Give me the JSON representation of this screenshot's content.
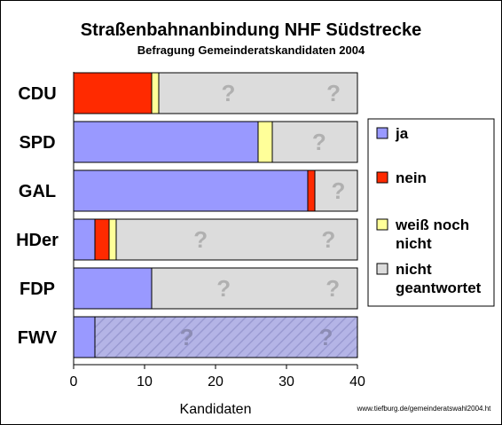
{
  "title": "Straßenbahnanbindung NHF Südstrecke",
  "subtitle": "Befragung Gemeinderatskandidaten 2004",
  "source": "www.tiefburg.de/gemeinderatswahl2004.ht",
  "unanswered_mark": "?",
  "colors": {
    "ja": "#9999ff",
    "nein": "#ff2a00",
    "weiss_noch_nicht": "#ffff99",
    "nicht_geantwortet": "#dcdcdc"
  },
  "chart_data": {
    "type": "bar",
    "orientation": "horizontal",
    "stacked": true,
    "categories": [
      "CDU",
      "SPD",
      "GAL",
      "HDer",
      "FDP",
      "FWV"
    ],
    "series": [
      {
        "name": "ja",
        "values": [
          0,
          26,
          33,
          3,
          11,
          3
        ]
      },
      {
        "name": "nein",
        "values": [
          11,
          0,
          1,
          2,
          0,
          0
        ]
      },
      {
        "name": "weiß noch nicht",
        "values": [
          1,
          2,
          0,
          1,
          0,
          0
        ]
      },
      {
        "name": "nicht geantwortet",
        "values": [
          28,
          12,
          6,
          34,
          29,
          37
        ]
      }
    ],
    "xlabel": "Kandidaten",
    "ylabel": "",
    "xlim": [
      0,
      40
    ],
    "xticks": [
      0,
      10,
      20,
      30,
      40
    ],
    "legend_position": "right",
    "grid": false
  }
}
